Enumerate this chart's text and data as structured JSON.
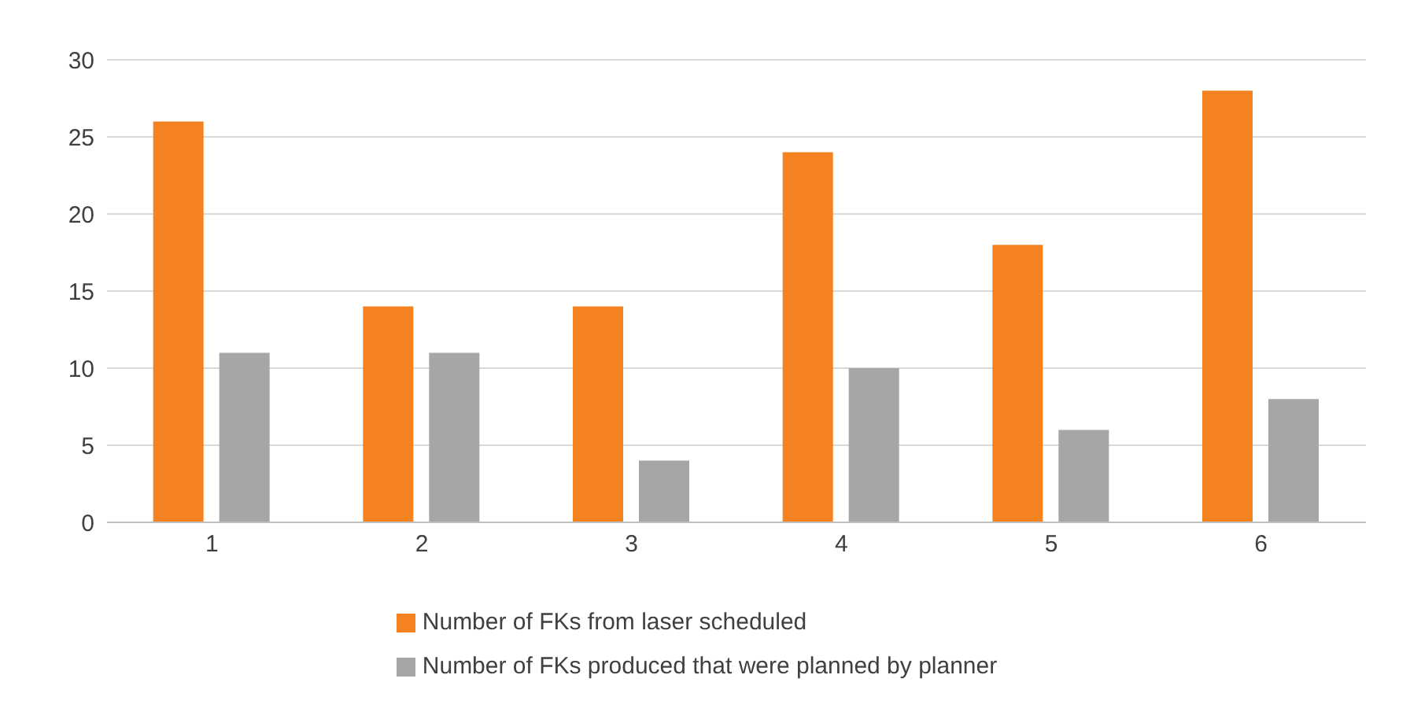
{
  "chart_data": {
    "type": "bar",
    "categories": [
      "1",
      "2",
      "3",
      "4",
      "5",
      "6"
    ],
    "series": [
      {
        "name": "Number of FKs from laser scheduled",
        "color": "#f58220",
        "values": [
          26,
          14,
          14,
          24,
          18,
          28
        ]
      },
      {
        "name": "Number of FKs produced that were planned by planner",
        "color": "#a6a6a6",
        "values": [
          11,
          11,
          4,
          10,
          6,
          8
        ]
      }
    ],
    "ylim": [
      0,
      30
    ],
    "yticks": [
      0,
      5,
      10,
      15,
      20,
      25,
      30
    ],
    "grid": "y",
    "legend": "bottom"
  }
}
